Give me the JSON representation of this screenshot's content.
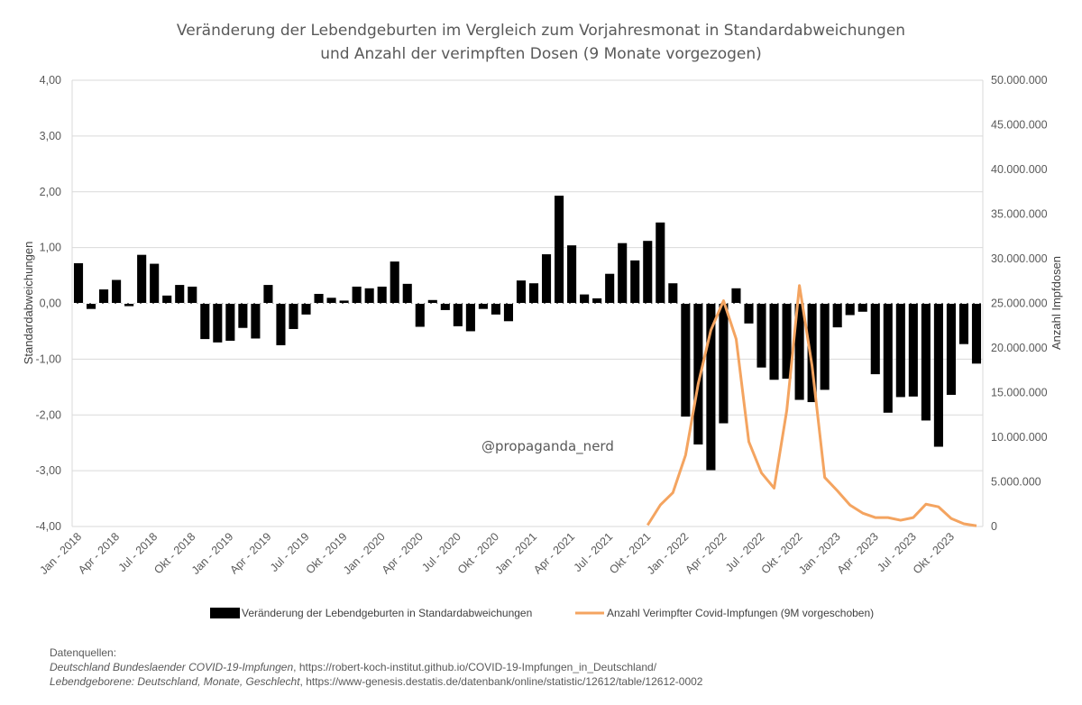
{
  "chart_data": {
    "type": "bar+line",
    "title_line1": "Veränderung der Lebendgeburten im Vergleich zum Vorjahresmonat in Standardabweichungen",
    "title_line2": "und Anzahl der verimpften Dosen (9 Monate vorgezogen)",
    "ylabel_left": "Standardabweichungen",
    "ylabel_right": "Anzahl Impfdosen",
    "ylim_left": [
      -4,
      4
    ],
    "ylim_right": [
      0,
      50000000
    ],
    "yticks_left": [
      "4,00",
      "3,00",
      "2,00",
      "1,00",
      "0,00",
      "-1,00",
      "-2,00",
      "-3,00",
      "-4,00"
    ],
    "yticks_right": [
      "50.000.000",
      "45.000.000",
      "40.000.000",
      "35.000.000",
      "30.000.000",
      "25.000.000",
      "20.000.000",
      "15.000.000",
      "10.000.000",
      "5.000.000",
      "0"
    ],
    "xtick_labels": [
      "Jan - 2018",
      "Apr - 2018",
      "Jul - 2018",
      "Okt - 2018",
      "Jan - 2019",
      "Apr - 2019",
      "Jul - 2019",
      "Okt - 2019",
      "Jan - 2020",
      "Apr - 2020",
      "Jul - 2020",
      "Okt - 2020",
      "Jan - 2021",
      "Apr - 2021",
      "Jul - 2021",
      "Okt - 2021",
      "Jan - 2022",
      "Apr - 2022",
      "Jul - 2022",
      "Okt - 2022",
      "Jan - 2023",
      "Apr - 2023",
      "Jul - 2023",
      "Okt - 2023"
    ],
    "months_count": 72,
    "bar_series_name": "Veränderung der Lebendgeburten in Standardabweichungen",
    "bar_color": "#000000",
    "bar_values": [
      0.72,
      -0.1,
      0.25,
      0.42,
      -0.05,
      0.87,
      0.71,
      0.14,
      0.33,
      0.3,
      -0.64,
      -0.7,
      -0.67,
      -0.44,
      -0.63,
      0.33,
      -0.75,
      -0.46,
      -0.2,
      0.17,
      0.1,
      0.05,
      0.3,
      0.27,
      0.3,
      0.75,
      0.35,
      -0.42,
      0.06,
      -0.12,
      -0.41,
      -0.5,
      -0.1,
      -0.2,
      -0.32,
      0.41,
      0.36,
      0.88,
      1.93,
      1.04,
      0.16,
      0.09,
      0.53,
      1.08,
      0.77,
      1.12,
      1.45,
      0.36,
      -2.03,
      -2.53,
      -2.99,
      -2.15,
      0.27,
      -0.36,
      -1.15,
      -1.37,
      -1.35,
      -1.73,
      -1.77,
      -1.55,
      -0.43,
      -0.21,
      -0.15,
      -1.27,
      -1.96,
      -1.68,
      -1.67,
      -2.1,
      -2.57,
      -1.64,
      -0.73,
      -1.08
    ],
    "line_series_name": "Anzahl Verimpfter Covid-Impfungen (9M vorgeschoben)",
    "line_color": "#f4a460",
    "line_start_index": 45,
    "line_values": [
      150000,
      2400000,
      3800000,
      8000000,
      16000000,
      22000000,
      25300000,
      21000000,
      9500000,
      6000000,
      4300000,
      13000000,
      27000000,
      18000000,
      5500000,
      4000000,
      2400000,
      1500000,
      1000000,
      1000000,
      700000,
      1000000,
      2500000,
      2200000,
      900000,
      300000,
      80000
    ],
    "watermark": "@propaganda_nerd"
  },
  "sources": {
    "heading": "Datenquellen:",
    "line1_source": "Deutschland Bundeslaender COVID-19-Impfungen",
    "line1_url": ", https://robert-koch-institut.github.io/COVID-19-Impfungen_in_Deutschland/",
    "line2_source": "Lebendgeborene: Deutschland, Monate, Geschlecht",
    "line2_url": ", https://www-genesis.destatis.de/datenbank/online/statistic/12612/table/12612-0002"
  }
}
